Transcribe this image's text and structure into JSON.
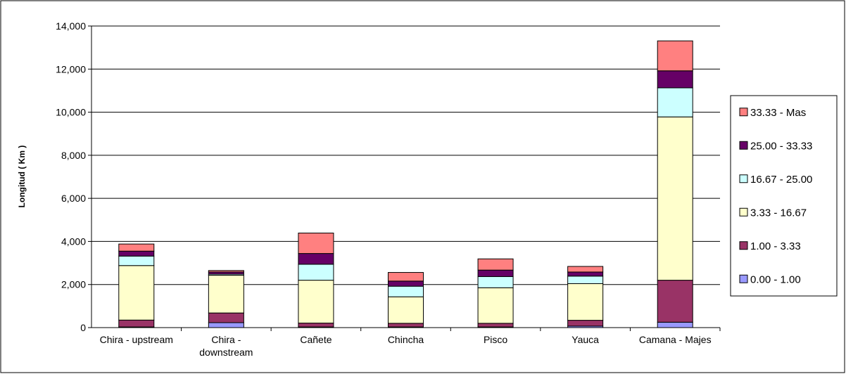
{
  "chart_data": {
    "type": "bar",
    "stacked": true,
    "title": "",
    "xlabel": "",
    "ylabel": "Longitud ( Km )",
    "ylim": [
      0,
      14000
    ],
    "yticks": [
      "0",
      "2,000",
      "4,000",
      "6,000",
      "8,000",
      "10,000",
      "12,000",
      "14,000"
    ],
    "ytick_values": [
      0,
      2000,
      4000,
      6000,
      8000,
      10000,
      12000,
      14000
    ],
    "grid": "horizontal",
    "legend_position": "right",
    "categories": [
      [
        "Chira - upstream"
      ],
      [
        "Chira -",
        "downstream"
      ],
      [
        "Cañete"
      ],
      [
        "Chincha"
      ],
      [
        "Pisco"
      ],
      [
        "Yauca"
      ],
      [
        "Camana - Majes"
      ]
    ],
    "series": [
      {
        "name": "0.00 - 1.00",
        "color": "#9999ff",
        "values": [
          30,
          230,
          30,
          30,
          30,
          70,
          250
        ]
      },
      {
        "name": "1.00 - 3.33",
        "color": "#993366",
        "values": [
          320,
          450,
          180,
          170,
          170,
          270,
          1950
        ]
      },
      {
        "name": "3.33 - 16.67",
        "color": "#ffffcc",
        "values": [
          2530,
          1750,
          1990,
          1230,
          1650,
          1700,
          7580
        ]
      },
      {
        "name": "16.67 - 25.00",
        "color": "#ccffff",
        "values": [
          440,
          50,
          740,
          490,
          520,
          350,
          1350
        ]
      },
      {
        "name": "25.00 - 33.33",
        "color": "#660066",
        "values": [
          230,
          100,
          500,
          240,
          300,
          190,
          790
        ]
      },
      {
        "name": "33.33 - Mas",
        "color": "#ff8080",
        "values": [
          330,
          70,
          950,
          400,
          520,
          260,
          1390
        ]
      }
    ]
  }
}
